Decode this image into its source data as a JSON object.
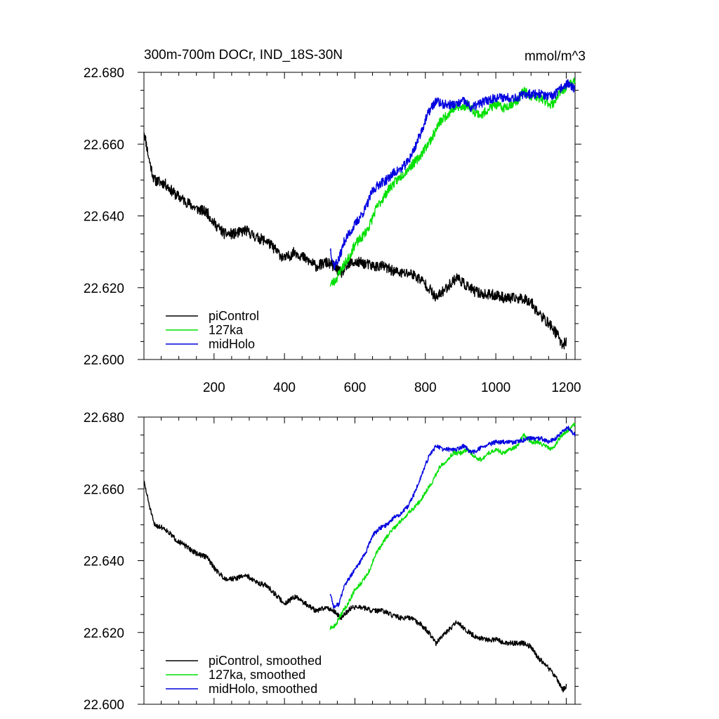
{
  "chart_data": [
    {
      "type": "line",
      "title": "300m-700m DOCr, IND_18S-30N",
      "units": "mmol/m^3",
      "xlim": [
        1,
        1225
      ],
      "ylim": [
        22.6,
        22.68
      ],
      "x_ticks": [
        200,
        400,
        600,
        800,
        1000,
        1200
      ],
      "x_tick_labels": [
        "200",
        "400",
        "600",
        "800",
        "1000",
        "1200"
      ],
      "y_ticks": [
        22.6,
        22.62,
        22.64,
        22.66,
        22.68
      ],
      "y_tick_labels": [
        "22.600",
        "22.620",
        "22.640",
        "22.660",
        "22.680"
      ],
      "legend_position": "bottom-left",
      "series": [
        {
          "name": "piControl",
          "color": "#000000",
          "points": [
            [
              1,
              22.664
            ],
            [
              15,
              22.656
            ],
            [
              30,
              22.65
            ],
            [
              60,
              22.649
            ],
            [
              90,
              22.646
            ],
            [
              120,
              22.644
            ],
            [
              150,
              22.642
            ],
            [
              180,
              22.641
            ],
            [
              200,
              22.638
            ],
            [
              230,
              22.635
            ],
            [
              260,
              22.635
            ],
            [
              290,
              22.636
            ],
            [
              320,
              22.634
            ],
            [
              350,
              22.633
            ],
            [
              370,
              22.631
            ],
            [
              400,
              22.628
            ],
            [
              430,
              22.63
            ],
            [
              460,
              22.628
            ],
            [
              490,
              22.626
            ],
            [
              520,
              22.627
            ],
            [
              540,
              22.626
            ],
            [
              560,
              22.624
            ],
            [
              590,
              22.627
            ],
            [
              620,
              22.627
            ],
            [
              650,
              22.626
            ],
            [
              680,
              22.626
            ],
            [
              700,
              22.625
            ],
            [
              730,
              22.624
            ],
            [
              760,
              22.624
            ],
            [
              790,
              22.622
            ],
            [
              810,
              22.62
            ],
            [
              830,
              22.617
            ],
            [
              860,
              22.62
            ],
            [
              890,
              22.623
            ],
            [
              910,
              22.621
            ],
            [
              940,
              22.619
            ],
            [
              970,
              22.618
            ],
            [
              1000,
              22.618
            ],
            [
              1030,
              22.617
            ],
            [
              1060,
              22.617
            ],
            [
              1080,
              22.617
            ],
            [
              1100,
              22.616
            ],
            [
              1120,
              22.613
            ],
            [
              1140,
              22.611
            ],
            [
              1160,
              22.609
            ],
            [
              1180,
              22.606
            ],
            [
              1190,
              22.604
            ],
            [
              1200,
              22.605
            ]
          ],
          "noise": 0.0015,
          "seed": 11
        },
        {
          "name": "127ka",
          "color": "#00e000",
          "points": [
            [
              530,
              22.621
            ],
            [
              545,
              22.622
            ],
            [
              560,
              22.625
            ],
            [
              580,
              22.628
            ],
            [
              600,
              22.632
            ],
            [
              620,
              22.634
            ],
            [
              640,
              22.637
            ],
            [
              660,
              22.642
            ],
            [
              680,
              22.645
            ],
            [
              700,
              22.648
            ],
            [
              720,
              22.65
            ],
            [
              740,
              22.652
            ],
            [
              760,
              22.654
            ],
            [
              780,
              22.656
            ],
            [
              800,
              22.659
            ],
            [
              820,
              22.662
            ],
            [
              840,
              22.666
            ],
            [
              860,
              22.668
            ],
            [
              880,
              22.67
            ],
            [
              900,
              22.67
            ],
            [
              920,
              22.671
            ],
            [
              940,
              22.669
            ],
            [
              960,
              22.668
            ],
            [
              980,
              22.67
            ],
            [
              1000,
              22.671
            ],
            [
              1020,
              22.67
            ],
            [
              1040,
              22.671
            ],
            [
              1060,
              22.672
            ],
            [
              1080,
              22.675
            ],
            [
              1100,
              22.673
            ],
            [
              1120,
              22.673
            ],
            [
              1140,
              22.672
            ],
            [
              1160,
              22.671
            ],
            [
              1180,
              22.674
            ],
            [
              1200,
              22.676
            ],
            [
              1225,
              22.678
            ]
          ],
          "noise": 0.0013,
          "seed": 23
        },
        {
          "name": "midHolo",
          "color": "#0000e0",
          "points": [
            [
              530,
              22.631
            ],
            [
              540,
              22.626
            ],
            [
              555,
              22.628
            ],
            [
              570,
              22.633
            ],
            [
              590,
              22.636
            ],
            [
              610,
              22.639
            ],
            [
              630,
              22.642
            ],
            [
              650,
              22.647
            ],
            [
              670,
              22.649
            ],
            [
              690,
              22.65
            ],
            [
              710,
              22.652
            ],
            [
              730,
              22.653
            ],
            [
              750,
              22.655
            ],
            [
              770,
              22.659
            ],
            [
              790,
              22.664
            ],
            [
              810,
              22.669
            ],
            [
              830,
              22.672
            ],
            [
              850,
              22.671
            ],
            [
              870,
              22.671
            ],
            [
              890,
              22.671
            ],
            [
              910,
              22.672
            ],
            [
              930,
              22.67
            ],
            [
              950,
              22.671
            ],
            [
              970,
              22.672
            ],
            [
              1000,
              22.673
            ],
            [
              1030,
              22.673
            ],
            [
              1060,
              22.673
            ],
            [
              1090,
              22.674
            ],
            [
              1110,
              22.674
            ],
            [
              1130,
              22.674
            ],
            [
              1150,
              22.673
            ],
            [
              1170,
              22.674
            ],
            [
              1190,
              22.676
            ],
            [
              1205,
              22.677
            ],
            [
              1225,
              22.675
            ]
          ],
          "noise": 0.0013,
          "seed": 37
        }
      ]
    },
    {
      "type": "line",
      "title": "",
      "units": "",
      "xlim": [
        1,
        1225
      ],
      "ylim": [
        22.6,
        22.68
      ],
      "x_ticks": [
        200,
        400,
        600,
        800,
        1000,
        1200
      ],
      "x_tick_labels": [],
      "y_ticks": [
        22.6,
        22.62,
        22.64,
        22.66,
        22.68
      ],
      "y_tick_labels": [
        "22.600",
        "22.620",
        "22.640",
        "22.660",
        "22.680"
      ],
      "legend_position": "bottom-left",
      "series": [
        {
          "name": "piControl, smoothed",
          "color": "#000000",
          "points": [
            [
              1,
              22.662
            ],
            [
              15,
              22.656
            ],
            [
              30,
              22.65
            ],
            [
              60,
              22.649
            ],
            [
              90,
              22.646
            ],
            [
              120,
              22.644
            ],
            [
              150,
              22.642
            ],
            [
              180,
              22.641
            ],
            [
              200,
              22.638
            ],
            [
              230,
              22.635
            ],
            [
              260,
              22.635
            ],
            [
              290,
              22.636
            ],
            [
              320,
              22.634
            ],
            [
              350,
              22.633
            ],
            [
              370,
              22.631
            ],
            [
              400,
              22.628
            ],
            [
              430,
              22.63
            ],
            [
              460,
              22.628
            ],
            [
              490,
              22.626
            ],
            [
              520,
              22.627
            ],
            [
              540,
              22.626
            ],
            [
              560,
              22.624
            ],
            [
              590,
              22.627
            ],
            [
              620,
              22.627
            ],
            [
              650,
              22.626
            ],
            [
              680,
              22.626
            ],
            [
              700,
              22.625
            ],
            [
              730,
              22.624
            ],
            [
              760,
              22.624
            ],
            [
              790,
              22.622
            ],
            [
              810,
              22.62
            ],
            [
              830,
              22.617
            ],
            [
              860,
              22.62
            ],
            [
              890,
              22.623
            ],
            [
              910,
              22.621
            ],
            [
              940,
              22.619
            ],
            [
              970,
              22.618
            ],
            [
              1000,
              22.618
            ],
            [
              1030,
              22.617
            ],
            [
              1060,
              22.617
            ],
            [
              1080,
              22.617
            ],
            [
              1100,
              22.616
            ],
            [
              1120,
              22.613
            ],
            [
              1140,
              22.611
            ],
            [
              1160,
              22.609
            ],
            [
              1180,
              22.606
            ],
            [
              1190,
              22.604
            ],
            [
              1200,
              22.605
            ]
          ],
          "noise": 0.0007,
          "seed": 51
        },
        {
          "name": "127ka, smoothed",
          "color": "#00e000",
          "points": [
            [
              530,
              22.621
            ],
            [
              545,
              22.622
            ],
            [
              560,
              22.625
            ],
            [
              580,
              22.628
            ],
            [
              600,
              22.632
            ],
            [
              620,
              22.634
            ],
            [
              640,
              22.637
            ],
            [
              660,
              22.642
            ],
            [
              680,
              22.645
            ],
            [
              700,
              22.648
            ],
            [
              720,
              22.65
            ],
            [
              740,
              22.652
            ],
            [
              760,
              22.654
            ],
            [
              780,
              22.656
            ],
            [
              800,
              22.659
            ],
            [
              820,
              22.662
            ],
            [
              840,
              22.666
            ],
            [
              860,
              22.668
            ],
            [
              880,
              22.67
            ],
            [
              900,
              22.67
            ],
            [
              920,
              22.671
            ],
            [
              940,
              22.669
            ],
            [
              960,
              22.668
            ],
            [
              980,
              22.67
            ],
            [
              1000,
              22.671
            ],
            [
              1020,
              22.67
            ],
            [
              1040,
              22.671
            ],
            [
              1060,
              22.672
            ],
            [
              1080,
              22.675
            ],
            [
              1100,
              22.673
            ],
            [
              1120,
              22.673
            ],
            [
              1140,
              22.672
            ],
            [
              1160,
              22.671
            ],
            [
              1180,
              22.674
            ],
            [
              1200,
              22.676
            ],
            [
              1225,
              22.678
            ]
          ],
          "noise": 0.0006,
          "seed": 63
        },
        {
          "name": "midHolo, smoothed",
          "color": "#0000e0",
          "points": [
            [
              530,
              22.631
            ],
            [
              540,
              22.627
            ],
            [
              555,
              22.628
            ],
            [
              570,
              22.633
            ],
            [
              590,
              22.636
            ],
            [
              610,
              22.639
            ],
            [
              630,
              22.642
            ],
            [
              650,
              22.647
            ],
            [
              670,
              22.649
            ],
            [
              690,
              22.65
            ],
            [
              710,
              22.652
            ],
            [
              730,
              22.653
            ],
            [
              750,
              22.655
            ],
            [
              770,
              22.659
            ],
            [
              790,
              22.664
            ],
            [
              810,
              22.669
            ],
            [
              830,
              22.672
            ],
            [
              850,
              22.671
            ],
            [
              870,
              22.671
            ],
            [
              890,
              22.671
            ],
            [
              910,
              22.672
            ],
            [
              930,
              22.67
            ],
            [
              950,
              22.671
            ],
            [
              970,
              22.672
            ],
            [
              1000,
              22.673
            ],
            [
              1030,
              22.673
            ],
            [
              1060,
              22.673
            ],
            [
              1090,
              22.674
            ],
            [
              1110,
              22.674
            ],
            [
              1130,
              22.674
            ],
            [
              1150,
              22.673
            ],
            [
              1170,
              22.674
            ],
            [
              1190,
              22.676
            ],
            [
              1205,
              22.677
            ],
            [
              1225,
              22.675
            ]
          ],
          "noise": 0.0006,
          "seed": 77
        }
      ]
    }
  ]
}
